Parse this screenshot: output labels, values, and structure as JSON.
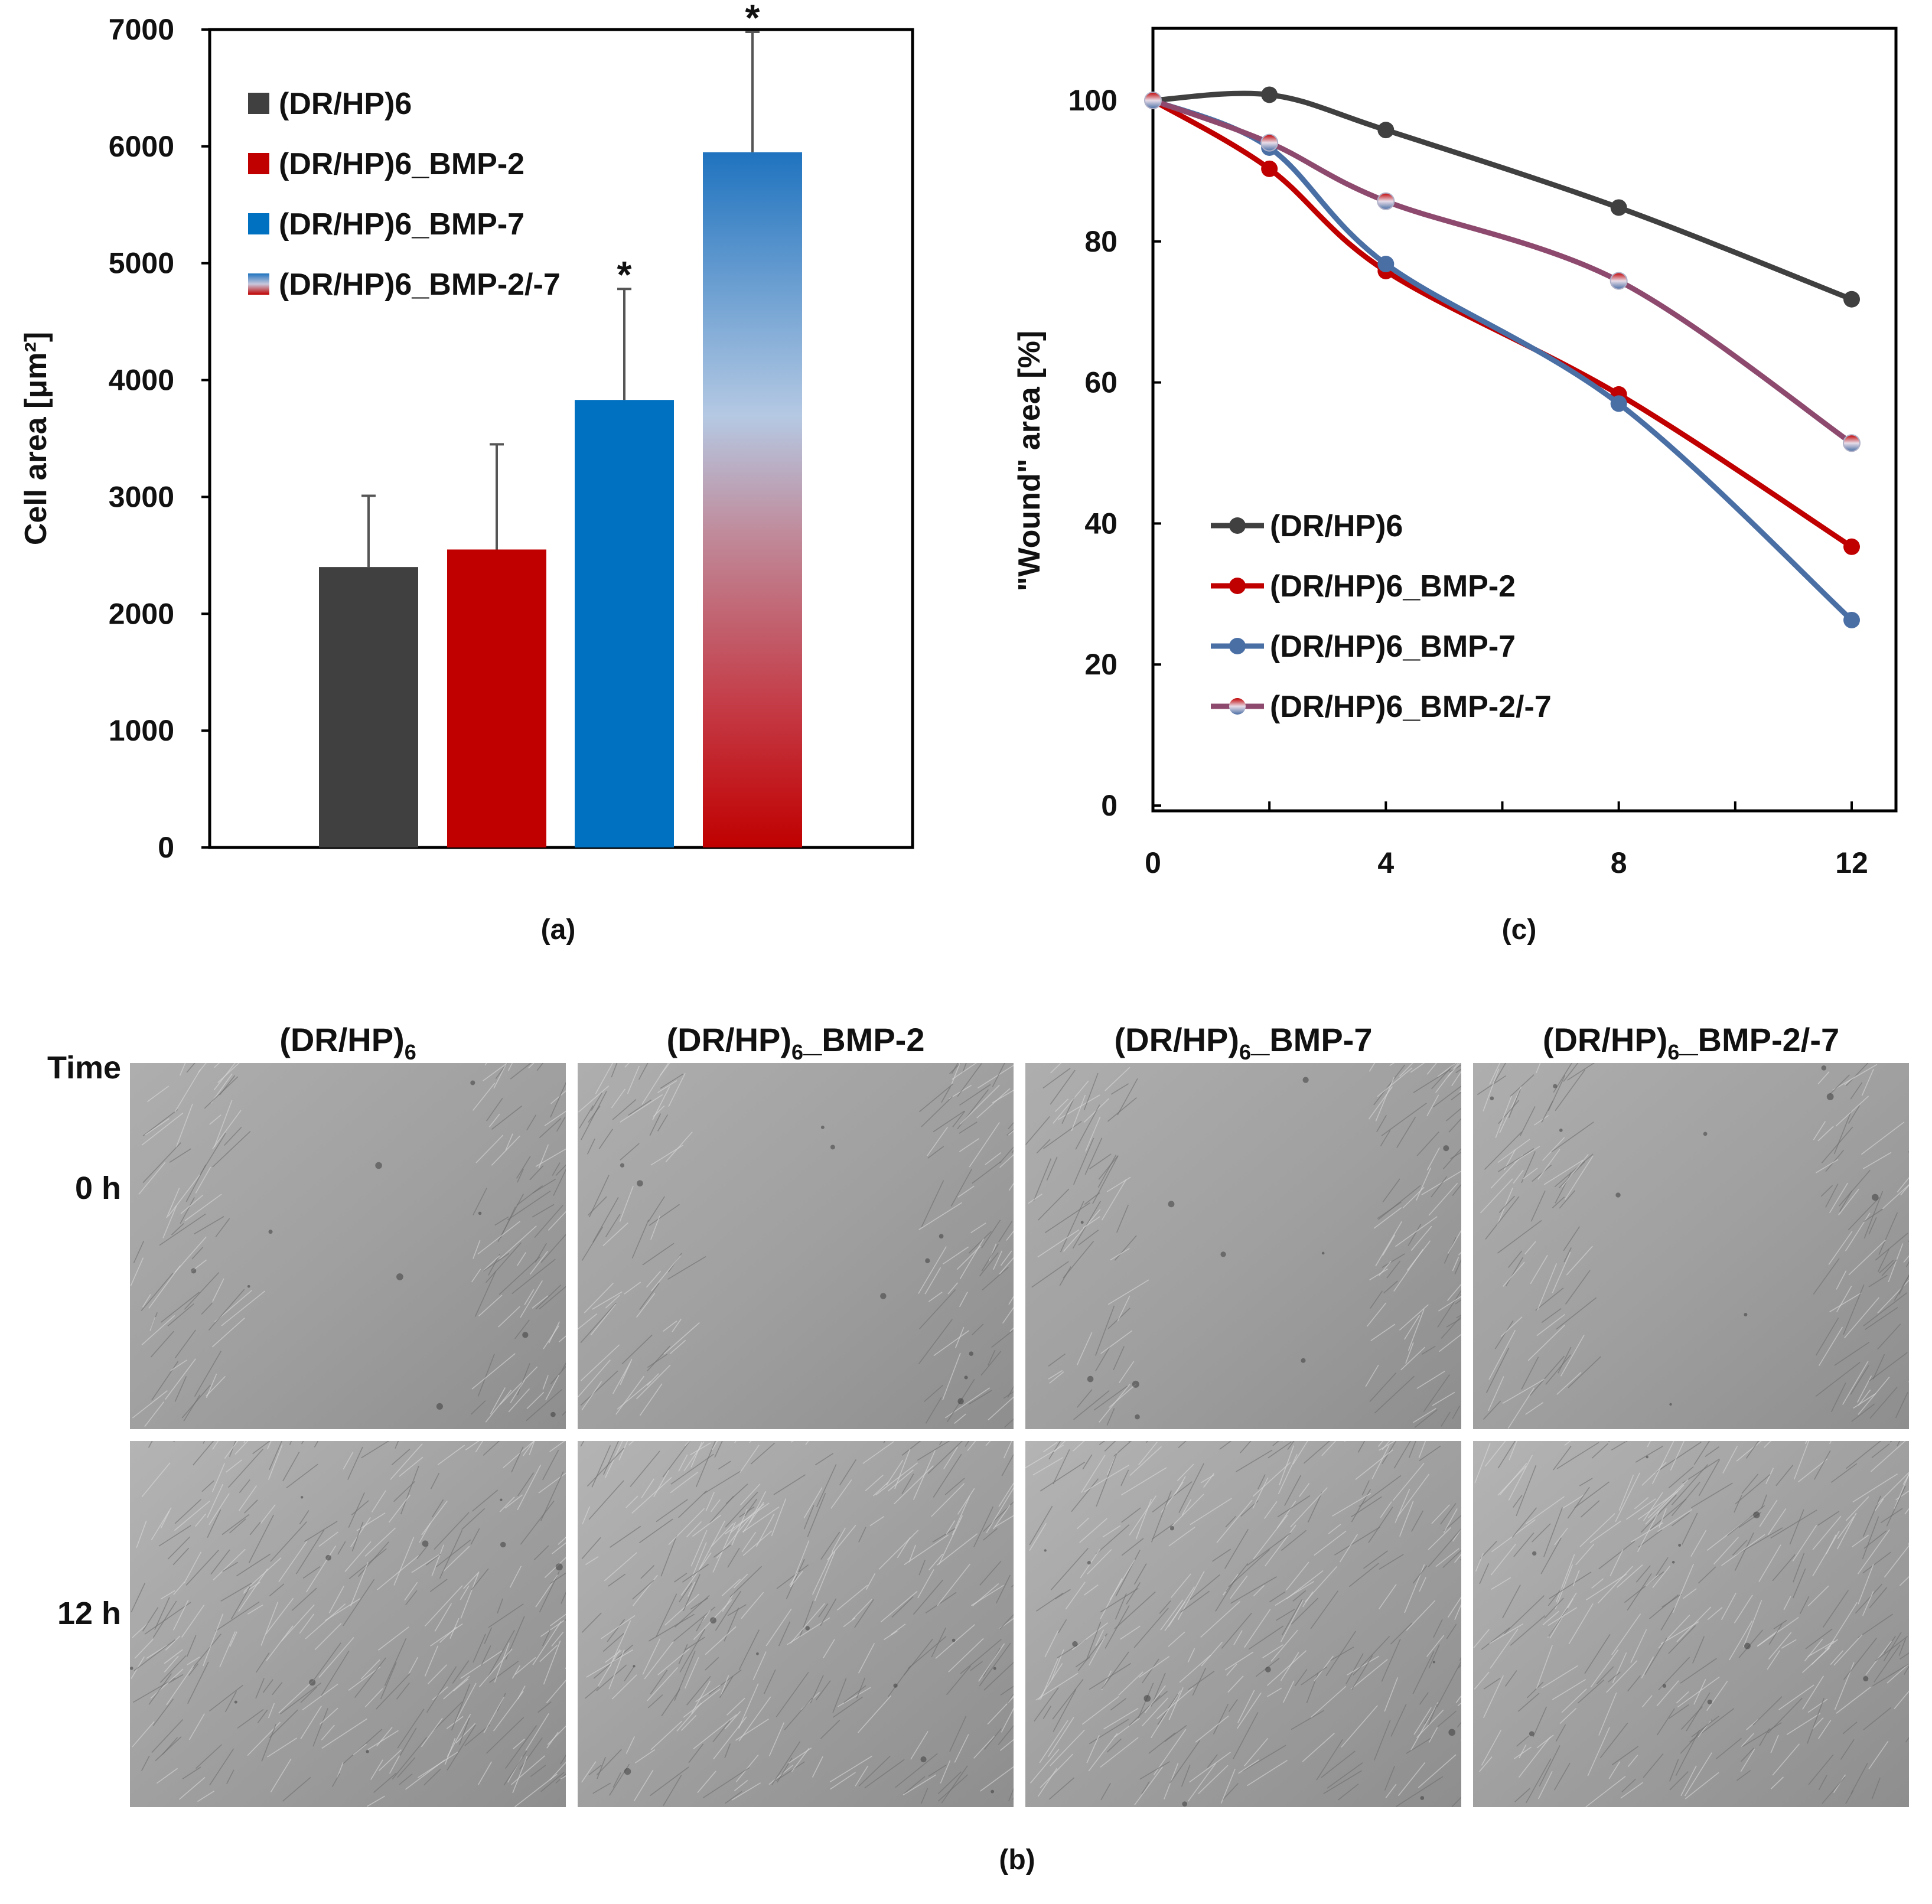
{
  "colors": {
    "dark_gray": "#404040",
    "red": "#c00000",
    "blue": "#0070c0",
    "line_blue": "#4a6fa5",
    "line_red": "#c00000",
    "line_gray": "#404040",
    "mixed_purple": "#8e4a6e"
  },
  "panel_a": {
    "caption": "(a)",
    "chart_data": {
      "type": "bar",
      "ylabel": "Cell area [μm²]",
      "ylim": [
        0,
        7000
      ],
      "yticks": [
        0,
        1000,
        2000,
        3000,
        4000,
        5000,
        6000,
        7000
      ],
      "legend_position": "top-left",
      "grid": false,
      "categories": [
        "(DR/HP)6",
        "(DR/HP)6_BMP-2",
        "(DR/HP)6_BMP-7",
        "(DR/HP)6_BMP-2/-7"
      ],
      "values": [
        2400,
        2550,
        3830,
        5950
      ],
      "errors": [
        610,
        900,
        950,
        1030
      ],
      "significance": [
        "",
        "",
        "*",
        "*"
      ],
      "legend": [
        "(DR/HP)6",
        "(DR/HP)6_BMP-2",
        "(DR/HP)6_BMP-7",
        "(DR/HP)6_BMP-2/-7"
      ]
    }
  },
  "panel_c": {
    "caption": "(c)",
    "chart_data": {
      "type": "line",
      "ylabel": "\"Wound\" area [%]",
      "ylim": [
        0,
        100
      ],
      "yticks": [
        0,
        20,
        40,
        60,
        80,
        100
      ],
      "xlim": [
        0,
        12
      ],
      "xticks": [
        0,
        4,
        8,
        12
      ],
      "legend_position": "bottom-left",
      "grid": false,
      "series": [
        {
          "name": "(DR/HP)6",
          "x": [
            0,
            2,
            4,
            8,
            12
          ],
          "values": [
            100,
            100.8,
            95.8,
            84.8,
            71.8
          ]
        },
        {
          "name": "(DR/HP)6_BMP-2",
          "x": [
            0,
            2,
            4,
            8,
            12
          ],
          "values": [
            100,
            90.3,
            75.8,
            58.3,
            36.7
          ]
        },
        {
          "name": "(DR/HP)6_BMP-7",
          "x": [
            0,
            2,
            4,
            8,
            12
          ],
          "values": [
            100,
            93.3,
            76.8,
            57.0,
            26.3
          ]
        },
        {
          "name": "(DR/HP)6_BMP-2/-7",
          "x": [
            0,
            2,
            4,
            8,
            12
          ],
          "values": [
            100,
            94.0,
            85.7,
            74.4,
            51.4
          ]
        }
      ]
    }
  },
  "panel_b": {
    "caption": "(b)",
    "time_header": "Time",
    "columns": [
      {
        "base": "(DR/HP)",
        "sub": "6",
        "suffix": ""
      },
      {
        "base": "(DR/HP)",
        "sub": "6",
        "suffix": "_BMP-2"
      },
      {
        "base": "(DR/HP)",
        "sub": "6",
        "suffix": "_BMP-7"
      },
      {
        "base": "(DR/HP)",
        "sub": "6",
        "suffix": "_BMP-2/-7"
      }
    ],
    "rows": [
      "0 h",
      "12 h"
    ]
  }
}
